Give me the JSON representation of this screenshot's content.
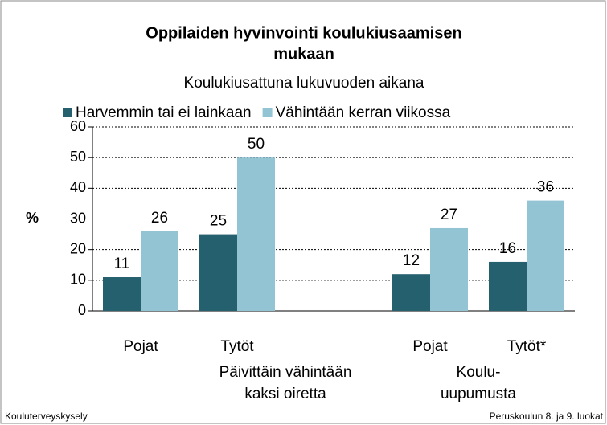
{
  "chart_data": {
    "type": "bar",
    "title": [
      "Oppilaiden hyvinvointi koulukiusaamisen",
      "mukaan"
    ],
    "subtitle": "Koulukiusattuna lukuvuoden aikana",
    "y_label": "%",
    "categories": [
      "Pojat",
      "Tytöt",
      null,
      "Pojat",
      "Tytöt*"
    ],
    "groups": [
      [
        "Päivittäin vähintään",
        "kaksi oiretta"
      ],
      [
        "Koulu-",
        "uupumusta"
      ]
    ],
    "series": [
      {
        "name": "Harvemmin tai ei lainkaan",
        "color": "#25606e",
        "values": [
          11,
          25,
          null,
          12,
          16
        ]
      },
      {
        "name": "Vähintään kerran viikossa",
        "color": "#93c4d4",
        "values": [
          26,
          50,
          null,
          27,
          36
        ]
      }
    ],
    "ylim": [
      0,
      60
    ],
    "yticks": [
      0,
      10,
      20,
      30,
      40,
      50,
      60
    ],
    "grid": true,
    "legend": "top",
    "source": "Kouluterveyskysely",
    "note": "Peruskoulun 8. ja 9. luokat"
  }
}
